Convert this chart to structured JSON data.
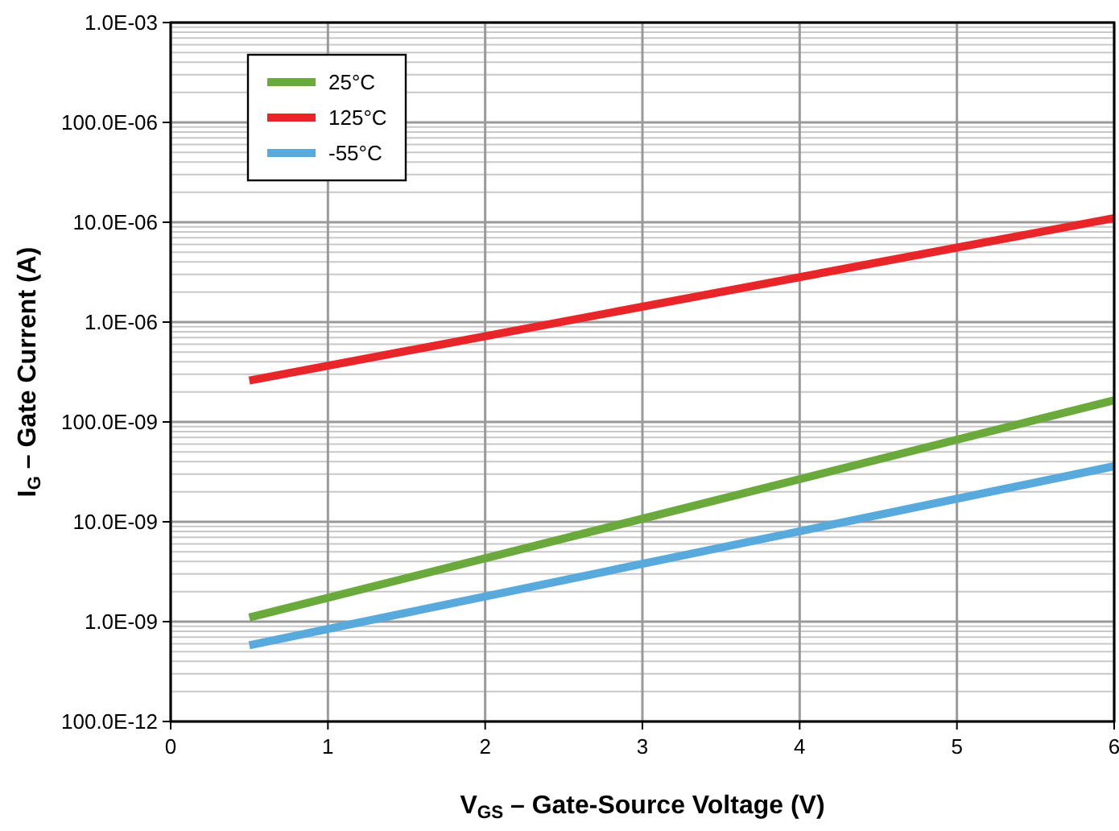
{
  "chart_data": {
    "type": "line",
    "xlabel": "V$_{GS}$ – Gate-Source Voltage (V)",
    "ylabel": "I$_{G}$ – Gate Current (A)",
    "x": [
      0.5,
      6
    ],
    "series": [
      {
        "name": "25°C",
        "color": "#6aaa3c",
        "values": [
          1.1e-09,
          1.65e-07
        ]
      },
      {
        "name": "125°C",
        "color": "#e8262a",
        "values": [
          2.6e-07,
          1.1e-05
        ]
      },
      {
        "name": "-55°C",
        "color": "#58a9dc",
        "values": [
          5.8e-10,
          3.6e-08
        ]
      }
    ],
    "xlim": [
      0,
      6
    ],
    "xticks": [
      0,
      1,
      2,
      3,
      4,
      5,
      6
    ],
    "ylim": [
      1e-10,
      0.001
    ],
    "yticks": [
      {
        "value": 1e-10,
        "label": "100.0E-12"
      },
      {
        "value": 1e-09,
        "label": "1.0E-09"
      },
      {
        "value": 1e-08,
        "label": "10.0E-09"
      },
      {
        "value": 1e-07,
        "label": "100.0E-09"
      },
      {
        "value": 1e-06,
        "label": "1.0E-06"
      },
      {
        "value": 1e-05,
        "label": "10.0E-06"
      },
      {
        "value": 0.0001,
        "label": "100.0E-06"
      },
      {
        "value": 0.001,
        "label": "1.0E-03"
      }
    ],
    "log": "y",
    "grid": true,
    "legend": "top left",
    "marker": "none",
    "line_style": "solid"
  }
}
